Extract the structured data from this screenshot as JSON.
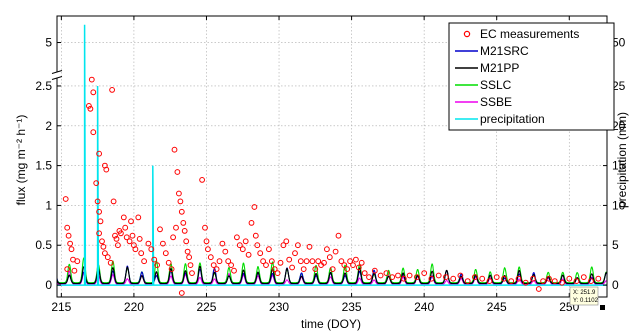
{
  "chart_data": {
    "type": "line",
    "xlabel": "time (DOY)",
    "ylabel": "flux (mg m⁻² h⁻¹)",
    "y2label": "precipitation (mm)",
    "xlim": [
      214.7,
      252.6
    ],
    "ylim_lower": [
      -0.15,
      2.6
    ],
    "ylim_upper": [
      4.0,
      5.9
    ],
    "y2lim": [
      -1.5,
      59
    ],
    "x_ticks": [
      215,
      220,
      225,
      230,
      235,
      240,
      245,
      250
    ],
    "y_ticks_lower": [
      0,
      0.5,
      1,
      1.5,
      2,
      2.5
    ],
    "y_ticks_upper": [
      5
    ],
    "y2_ticks": [
      0,
      5,
      10,
      15,
      20,
      25,
      50
    ],
    "grid": true,
    "axis_break": true,
    "legend_position": "top-right",
    "colors": {
      "ec": "#ff0000",
      "m21src": "#0000cc",
      "m21pp": "#000000",
      "sslc": "#00dd00",
      "ssbe": "#ee00ee",
      "precip": "#00e5ee"
    },
    "series": [
      {
        "name": "EC measurements",
        "marker": "circle",
        "points": [
          [
            215.3,
            1.08
          ],
          [
            215.4,
            0.72
          ],
          [
            215.5,
            0.62
          ],
          [
            215.6,
            0.52
          ],
          [
            215.7,
            0.45
          ],
          [
            215.4,
            0.2
          ],
          [
            215.8,
            0.32
          ],
          [
            215.9,
            0.18
          ],
          [
            216.1,
            0.3
          ],
          [
            216.9,
            2.25
          ],
          [
            217.0,
            2.75
          ],
          [
            217.1,
            2.58
          ],
          [
            217.2,
            2.42
          ],
          [
            217.2,
            1.92
          ],
          [
            217.4,
            1.28
          ],
          [
            217.5,
            1.05
          ],
          [
            217.6,
            0.92
          ],
          [
            217.7,
            0.8
          ],
          [
            217.6,
            0.65
          ],
          [
            217.8,
            0.55
          ],
          [
            217.9,
            0.48
          ],
          [
            218.0,
            0.4
          ],
          [
            218.1,
            1.45
          ],
          [
            218.2,
            0.35
          ],
          [
            218.4,
            0.28
          ],
          [
            217.6,
            1.65
          ],
          [
            218.0,
            1.5
          ],
          [
            218.5,
            2.45
          ],
          [
            218.6,
            1.05
          ],
          [
            218.7,
            0.62
          ],
          [
            218.8,
            0.58
          ],
          [
            218.9,
            0.5
          ],
          [
            219.0,
            0.68
          ],
          [
            219.1,
            0.65
          ],
          [
            219.3,
            0.85
          ],
          [
            219.4,
            0.72
          ],
          [
            219.5,
            0.6
          ],
          [
            219.7,
            0.55
          ],
          [
            219.8,
            0.8
          ],
          [
            219.9,
            0.62
          ],
          [
            220.0,
            0.5
          ],
          [
            220.1,
            0.45
          ],
          [
            220.3,
            0.85
          ],
          [
            220.4,
            0.58
          ],
          [
            220.5,
            0.4
          ],
          [
            220.7,
            0.3
          ],
          [
            221.0,
            0.52
          ],
          [
            221.2,
            0.45
          ],
          [
            221.4,
            0.32
          ],
          [
            221.6,
            0.25
          ],
          [
            221.8,
            0.7
          ],
          [
            222.0,
            0.52
          ],
          [
            222.2,
            0.4
          ],
          [
            222.4,
            0.28
          ],
          [
            222.6,
            0.2
          ],
          [
            222.8,
            1.7
          ],
          [
            223.0,
            1.42
          ],
          [
            223.1,
            1.15
          ],
          [
            223.2,
            1.05
          ],
          [
            223.3,
            0.92
          ],
          [
            223.4,
            0.78
          ],
          [
            223.5,
            0.68
          ],
          [
            223.6,
            0.55
          ],
          [
            223.7,
            0.42
          ],
          [
            223.8,
            0.35
          ],
          [
            223.9,
            0.25
          ],
          [
            224.0,
            0.15
          ],
          [
            223.3,
            -0.1
          ],
          [
            222.7,
            0.6
          ],
          [
            222.9,
            0.72
          ],
          [
            224.7,
            1.32
          ],
          [
            224.9,
            0.72
          ],
          [
            225.0,
            0.55
          ],
          [
            225.1,
            0.45
          ],
          [
            225.3,
            0.35
          ],
          [
            225.5,
            0.25
          ],
          [
            225.7,
            0.2
          ],
          [
            225.9,
            0.3
          ],
          [
            226.1,
            0.52
          ],
          [
            226.3,
            0.42
          ],
          [
            226.5,
            0.3
          ],
          [
            226.7,
            0.25
          ],
          [
            226.9,
            0.18
          ],
          [
            227.1,
            0.6
          ],
          [
            227.3,
            0.5
          ],
          [
            227.5,
            0.45
          ],
          [
            227.7,
            0.55
          ],
          [
            227.9,
            0.38
          ],
          [
            228.1,
            0.78
          ],
          [
            228.3,
            0.98
          ],
          [
            228.4,
            0.62
          ],
          [
            228.5,
            0.5
          ],
          [
            228.7,
            0.4
          ],
          [
            228.9,
            0.3
          ],
          [
            229.1,
            0.25
          ],
          [
            229.3,
            0.45
          ],
          [
            229.5,
            0.3
          ],
          [
            229.7,
            0.2
          ],
          [
            229.9,
            0.15
          ],
          [
            230.1,
            0.28
          ],
          [
            230.3,
            0.5
          ],
          [
            230.5,
            0.55
          ],
          [
            230.7,
            0.32
          ],
          [
            230.9,
            0.22
          ],
          [
            231.1,
            0.4
          ],
          [
            231.3,
            0.5
          ],
          [
            231.5,
            0.3
          ],
          [
            231.7,
            0.2
          ],
          [
            231.9,
            0.3
          ],
          [
            232.1,
            0.48
          ],
          [
            232.3,
            0.3
          ],
          [
            232.5,
            0.2
          ],
          [
            232.7,
            0.3
          ],
          [
            232.9,
            0.25
          ],
          [
            233.1,
            0.28
          ],
          [
            233.3,
            0.45
          ],
          [
            233.5,
            0.35
          ],
          [
            233.7,
            0.2
          ],
          [
            233.9,
            0.42
          ],
          [
            234.1,
            0.62
          ],
          [
            234.3,
            0.3
          ],
          [
            234.5,
            0.25
          ],
          [
            234.7,
            0.2
          ],
          [
            234.9,
            0.3
          ],
          [
            235.1,
            0.25
          ],
          [
            235.3,
            0.32
          ],
          [
            235.5,
            0.22
          ],
          [
            235.7,
            0.28
          ],
          [
            235.9,
            0.15
          ],
          [
            236.2,
            0.1
          ],
          [
            236.6,
            0.18
          ],
          [
            237.0,
            0.12
          ],
          [
            237.4,
            0.15
          ],
          [
            237.8,
            0.1
          ],
          [
            238.2,
            0.12
          ],
          [
            238.6,
            0.08
          ],
          [
            239.0,
            0.12
          ],
          [
            239.5,
            0.1
          ],
          [
            240.0,
            0.15
          ],
          [
            240.5,
            0.08
          ],
          [
            241.0,
            0.12
          ],
          [
            241.5,
            0.1
          ],
          [
            242.0,
            0.08
          ],
          [
            242.5,
            0.12
          ],
          [
            243.0,
            0.05
          ],
          [
            243.5,
            0.1
          ],
          [
            244.0,
            0.08
          ],
          [
            244.5,
            0.05
          ],
          [
            245.0,
            0.1
          ],
          [
            245.5,
            0.08
          ],
          [
            246.0,
            0.05
          ],
          [
            246.5,
            0.08
          ],
          [
            247.0,
            0.03
          ],
          [
            247.5,
            0.08
          ],
          [
            247.9,
            -0.05
          ],
          [
            248.2,
            0.05
          ],
          [
            248.6,
            0.08
          ],
          [
            249.0,
            0.05
          ],
          [
            249.5,
            0.03
          ],
          [
            250.0,
            0.08
          ],
          [
            250.5,
            0.05
          ],
          [
            251.0,
            0.1
          ],
          [
            251.5,
            0.05
          ],
          [
            252.0,
            0.08
          ]
        ]
      },
      {
        "name": "M21SRC",
        "amplitude": 0.22,
        "baseline": 0.02
      },
      {
        "name": "M21PP",
        "amplitude": 0.24,
        "baseline": 0.02
      },
      {
        "name": "SSLC",
        "amplitude": 0.32,
        "baseline": 0.03
      },
      {
        "name": "SSBE",
        "amplitude": 0.16,
        "baseline": 0.01
      },
      {
        "name": "precipitation",
        "events": [
          [
            216.6,
            56
          ],
          [
            217.5,
            25
          ],
          [
            221.3,
            15
          ]
        ]
      }
    ],
    "datatip": {
      "x_text": "X: 251.9",
      "y_text": "Y: 0.1102",
      "x": 251.9,
      "y": 0.1102
    }
  }
}
